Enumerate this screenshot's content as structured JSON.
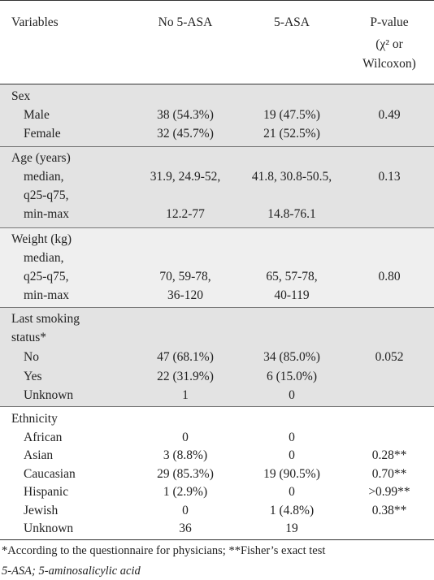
{
  "header": {
    "variables": "Variables",
    "no_asa": "No 5-ASA",
    "asa": "5-ASA",
    "pvalue_line1": "P-value",
    "pvalue_line2": "(χ² or",
    "pvalue_line3": "Wilcoxon)"
  },
  "sex": {
    "label": "Sex",
    "male": {
      "label": "Male",
      "no": "38 (54.3%)",
      "yes": "19 (47.5%)",
      "p": "0.49"
    },
    "female": {
      "label": "Female",
      "no": "32 (45.7%)",
      "yes": "21 (52.5%)"
    }
  },
  "age": {
    "label": "Age (years)",
    "line1": "median,",
    "line2": "q25-q75,",
    "line3": "min-max",
    "no_median": "31.9, 24.9-52,",
    "yes_median": "41.8, 30.8-50.5,",
    "p": "0.13",
    "no_range": "12.2-77",
    "yes_range": "14.8-76.1"
  },
  "weight": {
    "label": "Weight (kg)",
    "line1": "median,",
    "line2": "q25-q75,",
    "line3": "min-max",
    "no_line2": "70, 59-78,",
    "yes_line2": "65, 57-78,",
    "p": "0.80",
    "no_line3": "36-120",
    "yes_line3": "40-119"
  },
  "smoking": {
    "label_line1": "Last smoking",
    "label_line2": "status*",
    "no": {
      "label": "No",
      "no": "47 (68.1%)",
      "yes": "34 (85.0%)",
      "p": "0.052"
    },
    "yes": {
      "label": "Yes",
      "no": "22 (31.9%)",
      "yes": "6 (15.0%)"
    },
    "unknown": {
      "label": "Unknown",
      "no": "1",
      "yes": "0"
    }
  },
  "ethnicity": {
    "label": "Ethnicity",
    "rows": [
      {
        "label": "African",
        "no": "0",
        "yes": "0",
        "p": ""
      },
      {
        "label": "Asian",
        "no": "3 (8.8%)",
        "yes": "0",
        "p": "0.28**"
      },
      {
        "label": "Caucasian",
        "no": "29 (85.3%)",
        "yes": "19 (90.5%)",
        "p": "0.70**"
      },
      {
        "label": "Hispanic",
        "no": "1 (2.9%)",
        "yes": "0",
        "p": ">0.99**"
      },
      {
        "label": "Jewish",
        "no": "0",
        "yes": "1 (4.8%)",
        "p": "0.38**"
      },
      {
        "label": "Unknown",
        "no": "36",
        "yes": "19",
        "p": ""
      }
    ]
  },
  "footnotes": {
    "note1": "*According to the questionnaire for physicians; **Fisher’s exact test",
    "note2": "5-ASA; 5-aminosalicylic acid"
  }
}
